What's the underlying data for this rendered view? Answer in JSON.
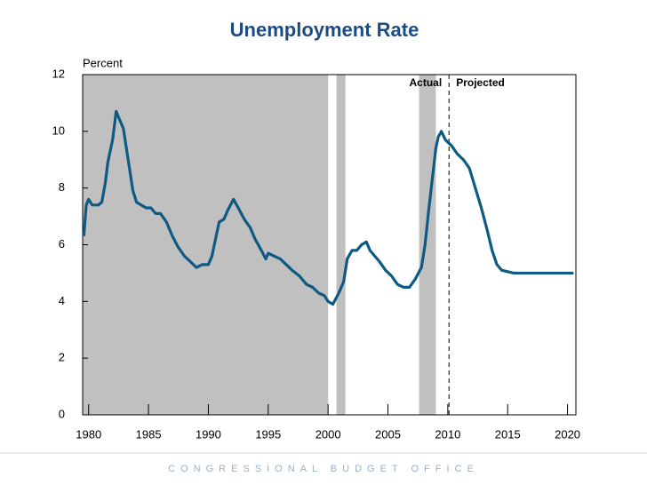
{
  "chart_data": {
    "type": "line",
    "title": "Unemployment Rate",
    "y_label": "Percent",
    "footer": "CONGRESSIONAL BUDGET OFFICE",
    "annotations": [
      "Actual",
      "Projected"
    ],
    "projection_start": 2010.1,
    "shaded_periods": [
      [
        1979.5,
        2000.0
      ],
      [
        1981.0,
        1982.3
      ],
      [
        1990.1,
        1990.8
      ],
      [
        2000.7,
        2001.45
      ],
      [
        2007.6,
        2009.0
      ]
    ],
    "shade_color": "#c0c0c0",
    "x": [
      1979.6,
      1979.8,
      1980.0,
      1980.3,
      1980.8,
      1981.1,
      1981.4,
      1981.6,
      1982.0,
      1982.3,
      1982.6,
      1982.9,
      1983.3,
      1983.7,
      1984.0,
      1984.4,
      1984.8,
      1985.2,
      1985.6,
      1986.0,
      1986.5,
      1987.0,
      1987.5,
      1988.0,
      1988.5,
      1989.0,
      1989.5,
      1990.0,
      1990.3,
      1990.6,
      1990.9,
      1991.3,
      1991.6,
      1992.1,
      1992.5,
      1993.0,
      1993.5,
      1993.9,
      1994.3,
      1994.8,
      1995.0,
      1995.5,
      1996.0,
      1996.5,
      1997.0,
      1997.6,
      1998.2,
      1998.7,
      1999.2,
      1999.7,
      2000.0,
      2000.4,
      2000.9,
      2001.3,
      2001.6,
      2002.0,
      2002.4,
      2002.8,
      2003.2,
      2003.5,
      2003.9,
      2004.3,
      2004.8,
      2005.3,
      2005.8,
      2006.3,
      2006.8,
      2007.3,
      2007.8,
      2008.1,
      2008.4,
      2008.7,
      2009.0,
      2009.2,
      2009.46,
      2009.8,
      2010.3,
      2010.8,
      2011.3,
      2011.8,
      2012.3,
      2012.8,
      2013.3,
      2013.7,
      2014.1,
      2014.5,
      2015.0,
      2015.5,
      2016.0,
      2020.5
    ],
    "series": [
      {
        "name": "Unemployment Rate",
        "color": "#0e5a82",
        "values": [
          6.3,
          7.4,
          7.6,
          7.4,
          7.4,
          7.5,
          8.2,
          8.9,
          9.7,
          10.7,
          10.4,
          10.1,
          9.0,
          7.9,
          7.5,
          7.4,
          7.3,
          7.3,
          7.1,
          7.1,
          6.8,
          6.3,
          5.9,
          5.6,
          5.4,
          5.2,
          5.3,
          5.3,
          5.6,
          6.2,
          6.8,
          6.9,
          7.2,
          7.6,
          7.3,
          6.9,
          6.6,
          6.2,
          5.9,
          5.5,
          5.7,
          5.6,
          5.5,
          5.3,
          5.1,
          4.9,
          4.6,
          4.5,
          4.3,
          4.2,
          4.0,
          3.9,
          4.3,
          4.7,
          5.5,
          5.8,
          5.8,
          6.0,
          6.1,
          5.8,
          5.6,
          5.4,
          5.1,
          4.9,
          4.6,
          4.5,
          4.5,
          4.8,
          5.2,
          6.0,
          7.2,
          8.3,
          9.4,
          9.8,
          10.0,
          9.7,
          9.5,
          9.2,
          9.0,
          8.7,
          8.0,
          7.3,
          6.5,
          5.8,
          5.3,
          5.1,
          5.05,
          5.0,
          5.0,
          5.0
        ]
      }
    ],
    "xlim": [
      1979.5,
      2020.7
    ],
    "ylim": [
      0,
      12
    ],
    "xticks": [
      1980,
      1985,
      1990,
      1995,
      2000,
      2005,
      2010,
      2015,
      2020
    ],
    "yticks": [
      0,
      2,
      4,
      6,
      8,
      10,
      12
    ],
    "grid": false
  }
}
